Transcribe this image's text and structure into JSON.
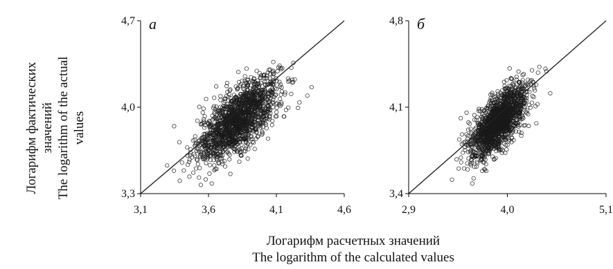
{
  "y_axis_label": {
    "line1": "Логарифм фактических",
    "line2": "значений",
    "line3": "The logarithm of the actual",
    "line4": "values"
  },
  "x_axis_label": {
    "line1": "Логарифм расчетных значений",
    "line2": "The logarithm of the calculated values"
  },
  "colors": {
    "point": "#1a1a1a",
    "line": "#222222",
    "axis": "#000000"
  },
  "chart_data": [
    {
      "type": "scatter",
      "panel_label": "а",
      "xlim": [
        3.1,
        4.6
      ],
      "ylim": [
        3.3,
        4.7
      ],
      "x_ticks": [
        "3,1",
        "3,6",
        "4,1",
        "4,6"
      ],
      "y_ticks": [
        "3,3",
        "4,0",
        "4,7"
      ],
      "reference_line": {
        "x": [
          3.1,
          4.6
        ],
        "y": [
          3.3,
          4.7
        ]
      },
      "cloud": {
        "center_x": 3.82,
        "center_y": 3.9,
        "sd_x": 0.15,
        "sd_y": 0.17,
        "correlation": 0.7,
        "n": 1600
      },
      "grid": false
    },
    {
      "type": "scatter",
      "panel_label": "б",
      "xlim": [
        2.9,
        5.1
      ],
      "ylim": [
        3.4,
        4.8
      ],
      "x_ticks": [
        "2,9",
        "4,0",
        "5,1"
      ],
      "y_ticks": [
        "3,4",
        "4,1",
        "4,8"
      ],
      "reference_line": {
        "x": [
          2.9,
          5.1
        ],
        "y": [
          3.4,
          4.8
        ]
      },
      "cloud": {
        "center_x": 3.9,
        "center_y": 3.98,
        "sd_x": 0.16,
        "sd_y": 0.15,
        "correlation": 0.7,
        "n": 1600
      },
      "grid": false
    }
  ]
}
